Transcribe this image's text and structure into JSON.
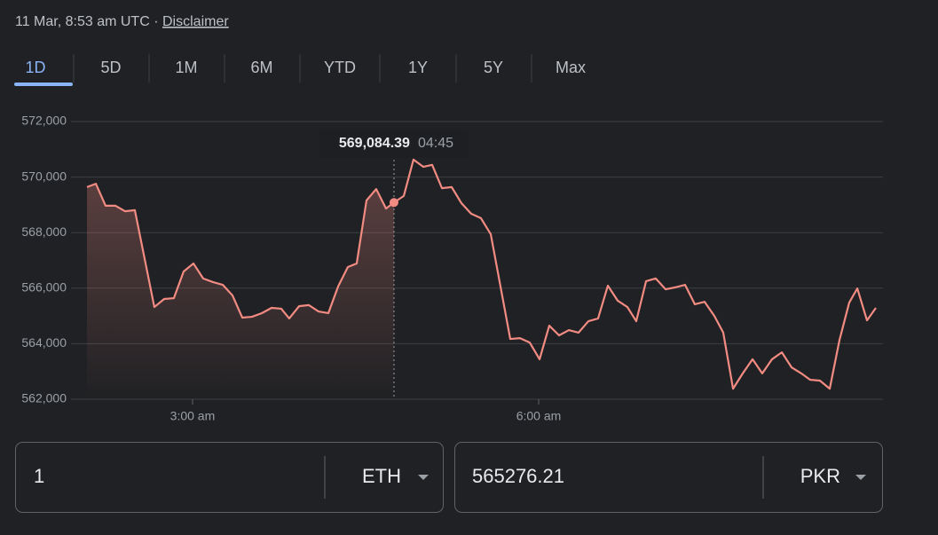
{
  "header": {
    "timestamp": "11 Mar, 8:53 am UTC",
    "separator": "·",
    "disclaimer": "Disclaimer"
  },
  "tabs": {
    "items": [
      "1D",
      "5D",
      "1M",
      "6M",
      "YTD",
      "1Y",
      "5Y",
      "Max"
    ],
    "active": 0
  },
  "chart_data": {
    "type": "line",
    "x": [
      2.085,
      2.162,
      2.246,
      2.331,
      2.415,
      2.5,
      2.669,
      2.754,
      2.838,
      2.923,
      3.008,
      3.092,
      3.177,
      3.262,
      3.346,
      3.431,
      3.515,
      3.6,
      3.685,
      3.769,
      3.838,
      3.923,
      4.008,
      4.092,
      4.177,
      4.262,
      4.346,
      4.423,
      4.508,
      4.592,
      4.677,
      4.746,
      4.831,
      4.915,
      5.0,
      5.077,
      5.162,
      5.246,
      5.331,
      5.415,
      5.5,
      5.585,
      5.754,
      5.838,
      5.923,
      6.008,
      6.092,
      6.177,
      6.262,
      6.346,
      6.431,
      6.515,
      6.6,
      6.685,
      6.769,
      6.846,
      6.931,
      7.015,
      7.1,
      7.185,
      7.269,
      7.354,
      7.438,
      7.523,
      7.6,
      7.685,
      7.769,
      7.854,
      7.938,
      8.023,
      8.108,
      8.192,
      8.277,
      8.354,
      8.438,
      8.523,
      8.608,
      8.692,
      8.762,
      8.846,
      8.923
    ],
    "series": [
      {
        "color": "#f28b82",
        "values": [
          569640,
          569760,
          568970,
          568970,
          568770,
          568810,
          565320,
          565610,
          565640,
          566600,
          566890,
          566350,
          566220,
          566120,
          565740,
          564940,
          564970,
          565100,
          565290,
          565260,
          564910,
          565350,
          565390,
          565160,
          565100,
          566060,
          566760,
          566890,
          569160,
          569570,
          568870,
          569084.39,
          569320,
          570630,
          570370,
          570440,
          569600,
          569640,
          569060,
          568680,
          568520,
          567940,
          564170,
          564200,
          564040,
          563440,
          564650,
          564300,
          564490,
          564400,
          564810,
          564910,
          566090,
          565550,
          565320,
          564810,
          566250,
          566350,
          565960,
          566030,
          566120,
          565420,
          565510,
          565000,
          564400,
          562380,
          562930,
          563440,
          562930,
          563440,
          563690,
          563150,
          562930,
          562700,
          562670,
          562380,
          564140,
          565480,
          565990,
          564840,
          565290
        ],
        "value_labels": [
          null,
          null,
          null,
          null,
          null,
          null,
          null,
          null,
          null,
          null,
          null,
          null,
          null,
          null,
          null,
          null,
          null,
          null,
          null,
          null,
          null,
          null,
          null,
          null,
          null,
          null,
          null,
          null,
          null,
          null,
          null,
          "569,084.39",
          null,
          null,
          null,
          null,
          null,
          null,
          null,
          null,
          null,
          null,
          null,
          null,
          null,
          null,
          null,
          null,
          null,
          null,
          null,
          null,
          null,
          null,
          null,
          null,
          null,
          null,
          null,
          null,
          null,
          null,
          null,
          null,
          null,
          null,
          null,
          null,
          null,
          null,
          null,
          null,
          null,
          null,
          null,
          null,
          null,
          null,
          null,
          null,
          null
        ]
      }
    ],
    "hover_time": "04:45",
    "xlim": [
      2.085,
      8.923
    ],
    "xticks": [
      {
        "value": 3,
        "label": "3:00 am"
      },
      {
        "value": 6,
        "label": "6:00 am"
      }
    ],
    "ylim": [
      562000,
      572000
    ],
    "yticks": [
      {
        "value": 562000,
        "label": "562,000"
      },
      {
        "value": 564000,
        "label": "564,000"
      },
      {
        "value": 566000,
        "label": "566,000"
      },
      {
        "value": 568000,
        "label": "568,000"
      },
      {
        "value": 570000,
        "label": "570,000"
      },
      {
        "value": 572000,
        "label": "572,000"
      }
    ],
    "grid": true
  },
  "converter": {
    "from_amount": "1",
    "from_currency": "ETH",
    "to_amount": "565276.21",
    "to_currency": "PKR"
  }
}
